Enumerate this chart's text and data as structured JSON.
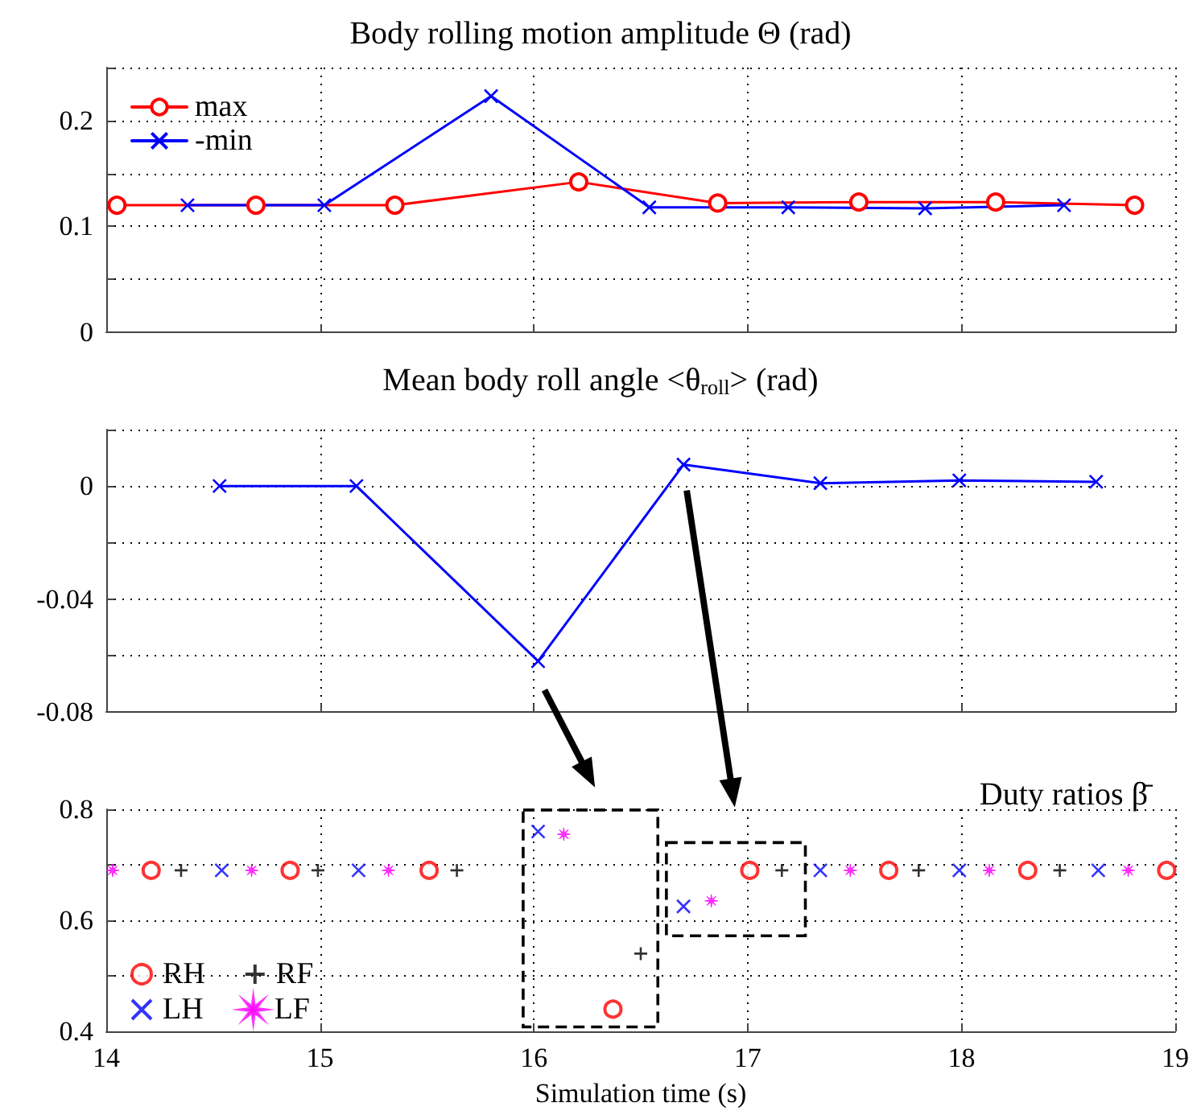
{
  "chart_data": [
    {
      "type": "line",
      "title": "Body rolling motion amplitude Θ (rad)",
      "xlim": [
        14,
        19
      ],
      "xticks": [
        14,
        15,
        16,
        17,
        18,
        19
      ],
      "ylim": [
        0,
        0.25
      ],
      "yticks": [
        0,
        {
          "value": 0.05,
          "label": null
        },
        0.1,
        {
          "value": 0.15,
          "label": null
        },
        0.2
      ],
      "grid": true,
      "legend": "top left",
      "tick_labels": "y",
      "series": [
        {
          "name": "max",
          "color": "#ff0000",
          "marker": "circle",
          "x": [
            14.05,
            14.7,
            15.35,
            16.21,
            16.86,
            17.52,
            18.16,
            18.81
          ],
          "values": [
            0.12,
            0.12,
            0.12,
            0.142,
            0.122,
            0.123,
            0.123,
            0.12
          ]
        },
        {
          "name": "-min",
          "color": "#0000ff",
          "marker": "cross",
          "x": [
            14.38,
            15.02,
            15.8,
            16.54,
            17.19,
            17.83,
            18.48
          ],
          "values": [
            0.12,
            0.12,
            0.223,
            0.118,
            0.118,
            0.117,
            0.12
          ]
        }
      ]
    },
    {
      "type": "line",
      "title": "Mean body roll angle <θ$_{roll}$> (rad)",
      "xlim": [
        14,
        19
      ],
      "xticks": [
        14,
        15,
        16,
        17,
        18,
        19
      ],
      "ylim": [
        -0.08,
        0.02
      ],
      "yticks": [
        -0.08,
        {
          "value": -0.06,
          "label": null
        },
        -0.04,
        {
          "value": -0.02,
          "label": null
        },
        0
      ],
      "grid": true,
      "tick_labels": "y",
      "series": [
        {
          "color": "#0000ff",
          "marker": "cross",
          "x": [
            14.53,
            15.17,
            16.02,
            16.7,
            17.34,
            17.99,
            18.63
          ],
          "values": [
            0,
            0,
            -0.062,
            0.0076,
            0.001,
            0.002,
            0.0015
          ]
        }
      ]
    },
    {
      "type": "scatter",
      "title": "Duty ratios β̄",
      "xlabel": "Simulation time (s)",
      "xlim": [
        14,
        19
      ],
      "xticks": [
        14,
        15,
        16,
        17,
        18,
        19
      ],
      "ylim": [
        0.4,
        0.8
      ],
      "yticks": [
        0.4,
        {
          "value": 0.5,
          "label": null
        },
        0.6,
        {
          "value": 0.7,
          "label": null
        },
        0.8
      ],
      "grid": true,
      "legend": "bottom left",
      "series": [
        {
          "name": "RH",
          "color": "#ff0000",
          "marker": "circle",
          "x": [
            14.21,
            14.86,
            15.51,
            16.37,
            17.01,
            17.66,
            18.31,
            18.96
          ],
          "values": [
            0.69,
            0.69,
            0.69,
            0.44,
            0.69,
            0.69,
            0.69,
            0.69
          ]
        },
        {
          "name": "RF",
          "color": "#000000",
          "marker": "plus",
          "x": [
            14.35,
            14.99,
            15.64,
            16.5,
            17.16,
            17.8,
            18.46
          ],
          "values": [
            0.69,
            0.69,
            0.69,
            0.54,
            0.69,
            0.69,
            0.69
          ]
        },
        {
          "name": "LH",
          "color": "#0000ff",
          "marker": "cross",
          "x": [
            14.54,
            15.18,
            16.02,
            16.7,
            17.34,
            17.99,
            18.64
          ],
          "values": [
            0.69,
            0.69,
            0.76,
            0.625,
            0.69,
            0.69,
            0.69
          ]
        },
        {
          "name": "LF",
          "color": "#ff00ff",
          "marker": "star",
          "x": [
            14.03,
            14.68,
            15.32,
            16.14,
            16.83,
            17.48,
            18.13,
            18.78
          ],
          "values": [
            0.69,
            0.69,
            0.69,
            0.755,
            0.635,
            0.69,
            0.69,
            0.69
          ]
        }
      ]
    }
  ]
}
